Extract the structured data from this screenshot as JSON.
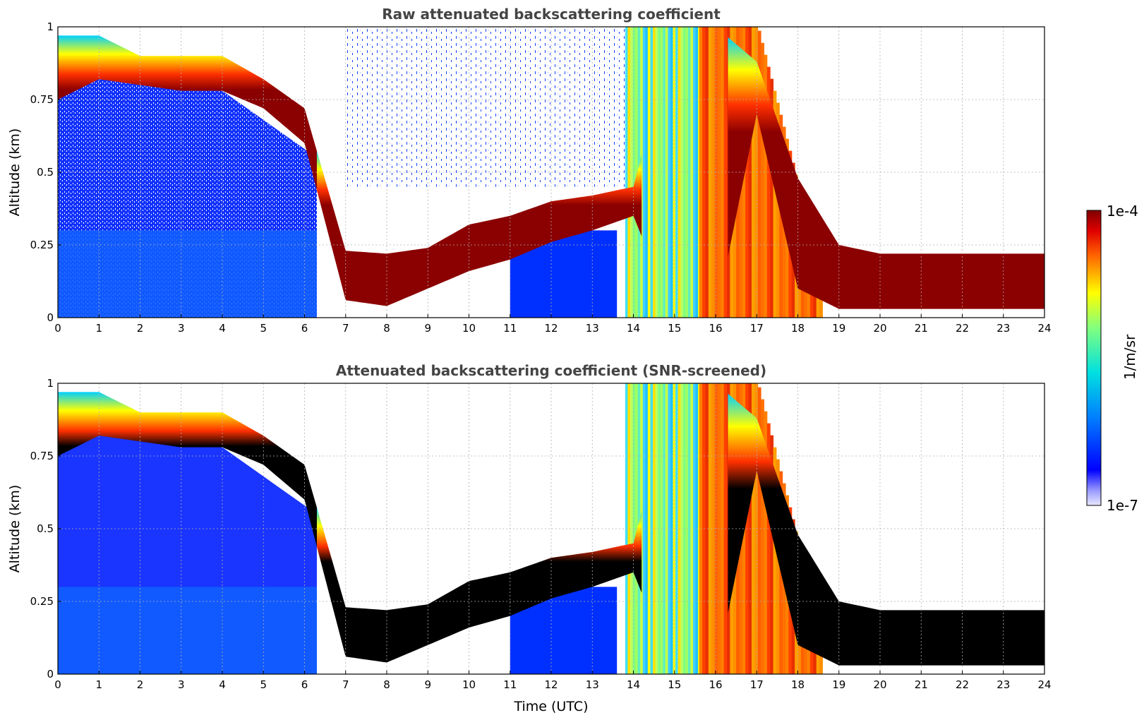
{
  "chart_data": [
    {
      "type": "heatmap",
      "title": "Raw attenuated backscattering coefficient",
      "xlabel": "",
      "ylabel": "Altitude (km)",
      "xlim": [
        0,
        24
      ],
      "ylim": [
        0,
        1
      ],
      "xticks": [
        "0",
        "1",
        "2",
        "3",
        "4",
        "5",
        "6",
        "7",
        "8",
        "9",
        "10",
        "11",
        "12",
        "13",
        "14",
        "15",
        "16",
        "17",
        "18",
        "19",
        "20",
        "21",
        "22",
        "23",
        "24"
      ],
      "yticks": [
        "0",
        "0.25",
        "0.5",
        "0.75",
        "1"
      ],
      "grid": true,
      "layers": {
        "cloud_top_km": [
          0.97,
          0.97,
          0.9,
          0.9,
          0.9,
          0.82,
          0.72,
          0.23,
          0.22,
          0.24,
          0.32,
          0.35,
          0.4,
          0.42,
          0.45,
          1.0,
          1.0,
          0.88,
          0.48,
          0.25,
          0.22,
          0.22,
          0.22,
          0.22,
          0.22
        ],
        "cloud_bottom_km": [
          0.75,
          0.82,
          0.8,
          0.78,
          0.78,
          0.72,
          0.6,
          0.06,
          0.04,
          0.1,
          0.16,
          0.2,
          0.26,
          0.3,
          0.35,
          0.0,
          0.0,
          0.7,
          0.1,
          0.03,
          0.03,
          0.03,
          0.03,
          0.03,
          0.03
        ]
      }
    },
    {
      "type": "heatmap",
      "title": "Attenuated backscattering coefficient (SNR-screened)",
      "xlabel": "Time (UTC)",
      "ylabel": "Altitude (km)",
      "xlim": [
        0,
        24
      ],
      "ylim": [
        0,
        1
      ],
      "xticks": [
        "0",
        "1",
        "2",
        "3",
        "4",
        "5",
        "6",
        "7",
        "8",
        "9",
        "10",
        "11",
        "12",
        "13",
        "14",
        "15",
        "16",
        "17",
        "18",
        "19",
        "20",
        "21",
        "22",
        "23",
        "24"
      ],
      "yticks": [
        "0",
        "0.25",
        "0.5",
        "0.75",
        "1"
      ],
      "grid": true,
      "layers": {
        "cloud_top_km": [
          0.97,
          0.97,
          0.9,
          0.9,
          0.9,
          0.82,
          0.72,
          0.23,
          0.22,
          0.24,
          0.32,
          0.35,
          0.4,
          0.42,
          0.45,
          1.0,
          1.0,
          0.88,
          0.48,
          0.25,
          0.22,
          0.22,
          0.22,
          0.22,
          0.22
        ],
        "cloud_bottom_km": [
          0.75,
          0.82,
          0.8,
          0.78,
          0.78,
          0.72,
          0.6,
          0.06,
          0.04,
          0.1,
          0.16,
          0.2,
          0.26,
          0.3,
          0.35,
          0.0,
          0.0,
          0.7,
          0.1,
          0.03,
          0.03,
          0.03,
          0.03,
          0.03,
          0.03
        ]
      }
    }
  ],
  "colorbar": {
    "label": "1/m/sr",
    "max_label": "1e-4",
    "min_label": "1e-7",
    "colormap": "jet",
    "scale": "log"
  }
}
